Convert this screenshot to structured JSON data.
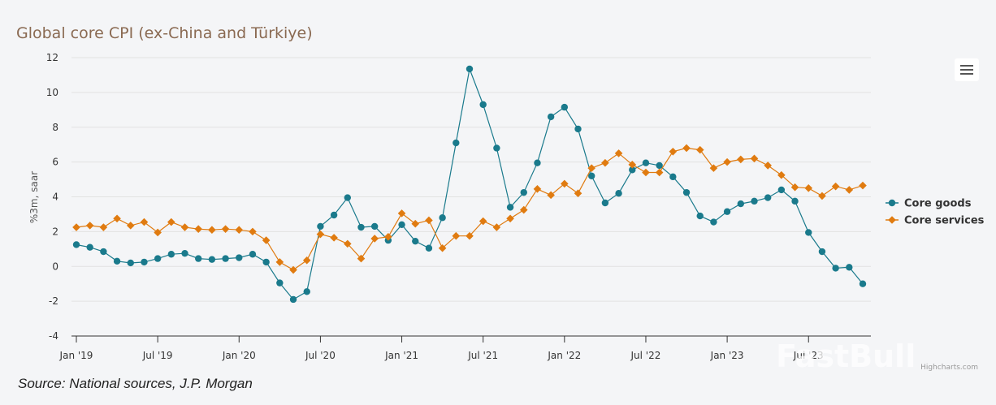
{
  "chart_data": {
    "type": "line",
    "title": "Global core CPI (ex-China and Türkiye)",
    "xlabel": "",
    "ylabel": "%3m, saar",
    "ylim": [
      -4,
      12
    ],
    "yticks": [
      -4,
      -2,
      0,
      2,
      4,
      6,
      8,
      10,
      12
    ],
    "xticks": [
      {
        "label": "Jan '19",
        "index": 0
      },
      {
        "label": "Jul '19",
        "index": 6
      },
      {
        "label": "Jan '20",
        "index": 12
      },
      {
        "label": "Jul '20",
        "index": 18
      },
      {
        "label": "Jan '21",
        "index": 24
      },
      {
        "label": "Jul '21",
        "index": 30
      },
      {
        "label": "Jan '22",
        "index": 36
      },
      {
        "label": "Jul '22",
        "index": 42
      },
      {
        "label": "Jan '23",
        "index": 48
      },
      {
        "label": "Jul '23",
        "index": 54
      }
    ],
    "x": [
      "2019-01",
      "2019-02",
      "2019-03",
      "2019-04",
      "2019-05",
      "2019-06",
      "2019-07",
      "2019-08",
      "2019-09",
      "2019-10",
      "2019-11",
      "2019-12",
      "2020-01",
      "2020-02",
      "2020-03",
      "2020-04",
      "2020-05",
      "2020-06",
      "2020-07",
      "2020-08",
      "2020-09",
      "2020-10",
      "2020-11",
      "2020-12",
      "2021-01",
      "2021-02",
      "2021-03",
      "2021-04",
      "2021-05",
      "2021-06",
      "2021-07",
      "2021-08",
      "2021-09",
      "2021-10",
      "2021-11",
      "2021-12",
      "2022-01",
      "2022-02",
      "2022-03",
      "2022-04",
      "2022-05",
      "2022-06",
      "2022-07",
      "2022-08",
      "2022-09",
      "2022-10",
      "2022-11",
      "2022-12",
      "2023-01",
      "2023-02",
      "2023-03",
      "2023-04",
      "2023-05",
      "2023-06",
      "2023-07",
      "2023-08",
      "2023-09",
      "2023-10",
      "2023-11"
    ],
    "grid": true,
    "legend_position": "right",
    "series": [
      {
        "name": "Core goods",
        "color": "#1a7a8c",
        "marker": "circle",
        "values": [
          1.25,
          1.1,
          0.85,
          0.3,
          0.2,
          0.25,
          0.45,
          0.7,
          0.75,
          0.45,
          0.4,
          0.45,
          0.5,
          0.7,
          0.25,
          -0.95,
          -1.9,
          -1.45,
          2.3,
          2.95,
          3.95,
          2.25,
          2.3,
          1.5,
          2.4,
          1.45,
          1.05,
          2.8,
          7.1,
          11.35,
          9.3,
          6.8,
          3.4,
          4.25,
          5.95,
          8.6,
          9.15,
          7.9,
          5.2,
          3.65,
          4.2,
          5.55,
          5.95,
          5.8,
          5.15,
          4.25,
          2.9,
          2.55,
          3.15,
          3.6,
          3.75,
          3.95,
          4.4,
          3.75,
          1.95,
          0.85,
          -0.1,
          -0.05,
          -1.0
        ]
      },
      {
        "name": "Core services",
        "color": "#e07b10",
        "marker": "diamond",
        "values": [
          2.25,
          2.35,
          2.25,
          2.75,
          2.35,
          2.55,
          1.95,
          2.55,
          2.25,
          2.15,
          2.1,
          2.15,
          2.1,
          2.0,
          1.5,
          0.25,
          -0.2,
          0.35,
          1.85,
          1.65,
          1.3,
          0.45,
          1.6,
          1.7,
          3.05,
          2.45,
          2.65,
          1.05,
          1.75,
          1.75,
          2.6,
          2.25,
          2.75,
          3.25,
          4.45,
          4.1,
          4.75,
          4.2,
          5.65,
          5.95,
          6.5,
          5.85,
          5.4,
          5.4,
          6.6,
          6.8,
          6.7,
          5.65,
          6.0,
          6.15,
          6.2,
          5.8,
          5.25,
          4.55,
          4.5,
          4.05,
          4.6,
          4.4,
          4.65
        ]
      }
    ],
    "credit": "Highcharts.com",
    "source": "Source: National sources, J.P. Morgan",
    "watermark": "FastBull"
  },
  "menu": {
    "icon": "hamburger-menu-icon"
  }
}
